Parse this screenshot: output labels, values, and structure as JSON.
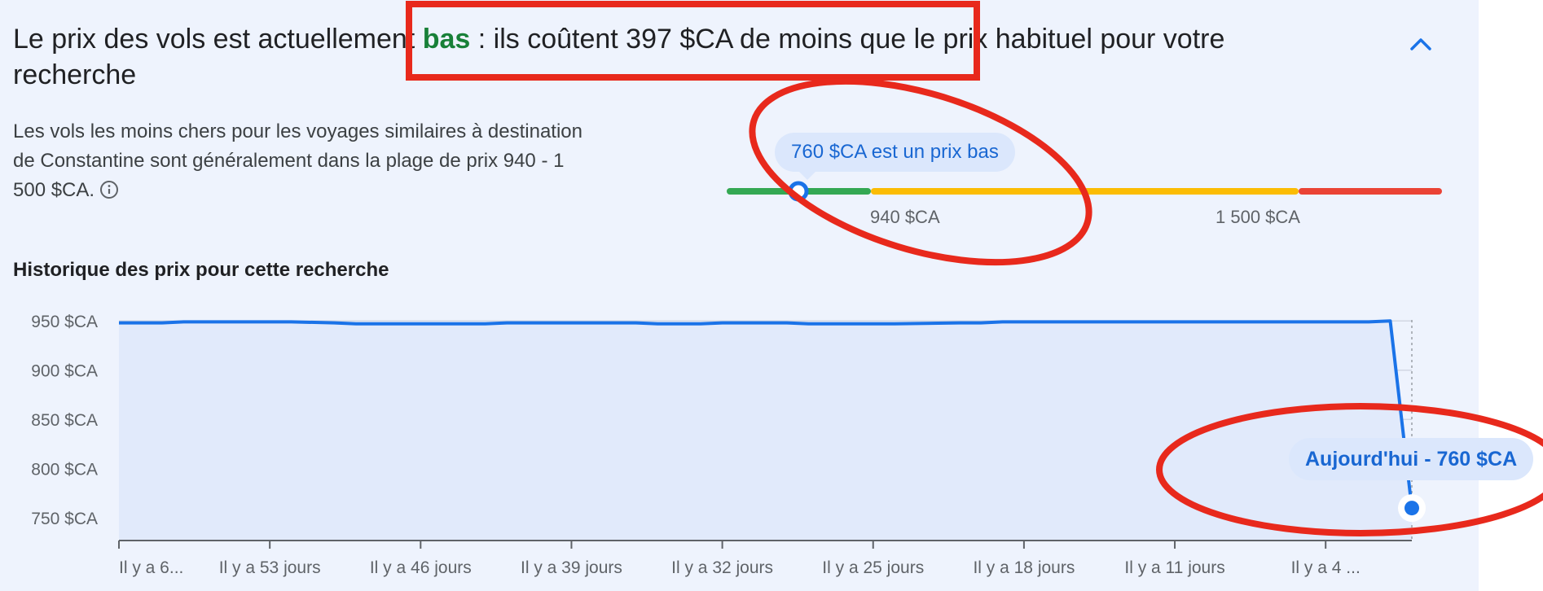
{
  "headline": {
    "before": "Le prix des vols est actuellement ",
    "level_word": "bas",
    "after": " : ils coûtent 397 $CA de moins que le prix habituel pour votre recherche"
  },
  "description": "Les vols les moins chers pour les voyages similaires à destination de Constantine sont généralement dans la plage de prix 940 - 1 500 $CA.",
  "price_range": {
    "current_label": "760 $CA est un prix bas",
    "current_value": 760,
    "low_threshold_label": "940 $CA",
    "high_threshold_label": "1 500 $CA",
    "colors": {
      "low": "#34a853",
      "typical": "#fbbc04",
      "high": "#ea4335"
    }
  },
  "history": {
    "title": "Historique des prix pour cette recherche",
    "today_label": "Aujourd'hui - 760 $CA"
  },
  "chart_data": {
    "type": "area",
    "y_ticks": [
      750,
      800,
      850,
      900,
      950
    ],
    "y_tick_labels": [
      "750 $CA",
      "800 $CA",
      "850 $CA",
      "900 $CA",
      "950 $CA"
    ],
    "ylim": [
      727,
      951
    ],
    "x_tick_labels": [
      "Il y a 6...",
      "Il y a 53 jours",
      "Il y a 46 jours",
      "Il y a 39 jours",
      "Il y a 32 jours",
      "Il y a 25 jours",
      "Il y a 18 jours",
      "Il y a 11 jours",
      "Il y a 4 ..."
    ],
    "x_tick_days_ago": [
      60,
      53,
      46,
      39,
      32,
      25,
      18,
      11,
      4
    ],
    "xlim_days_ago": [
      60,
      0
    ],
    "series": [
      {
        "days_ago": [
          60,
          58,
          57,
          52,
          50,
          49,
          43,
          42,
          36,
          35,
          33,
          32,
          29,
          28,
          25,
          24,
          21,
          20,
          19,
          2,
          1,
          0
        ],
        "values": [
          948,
          948,
          949,
          949,
          948,
          947,
          947,
          948,
          948,
          947,
          947,
          948,
          948,
          947,
          947,
          947,
          948,
          948,
          949,
          949,
          950,
          760
        ]
      }
    ],
    "grid": true,
    "colors": {
      "line": "#1a73e8",
      "fill": "#e1eafb",
      "grid": "#d2d7e3"
    }
  }
}
